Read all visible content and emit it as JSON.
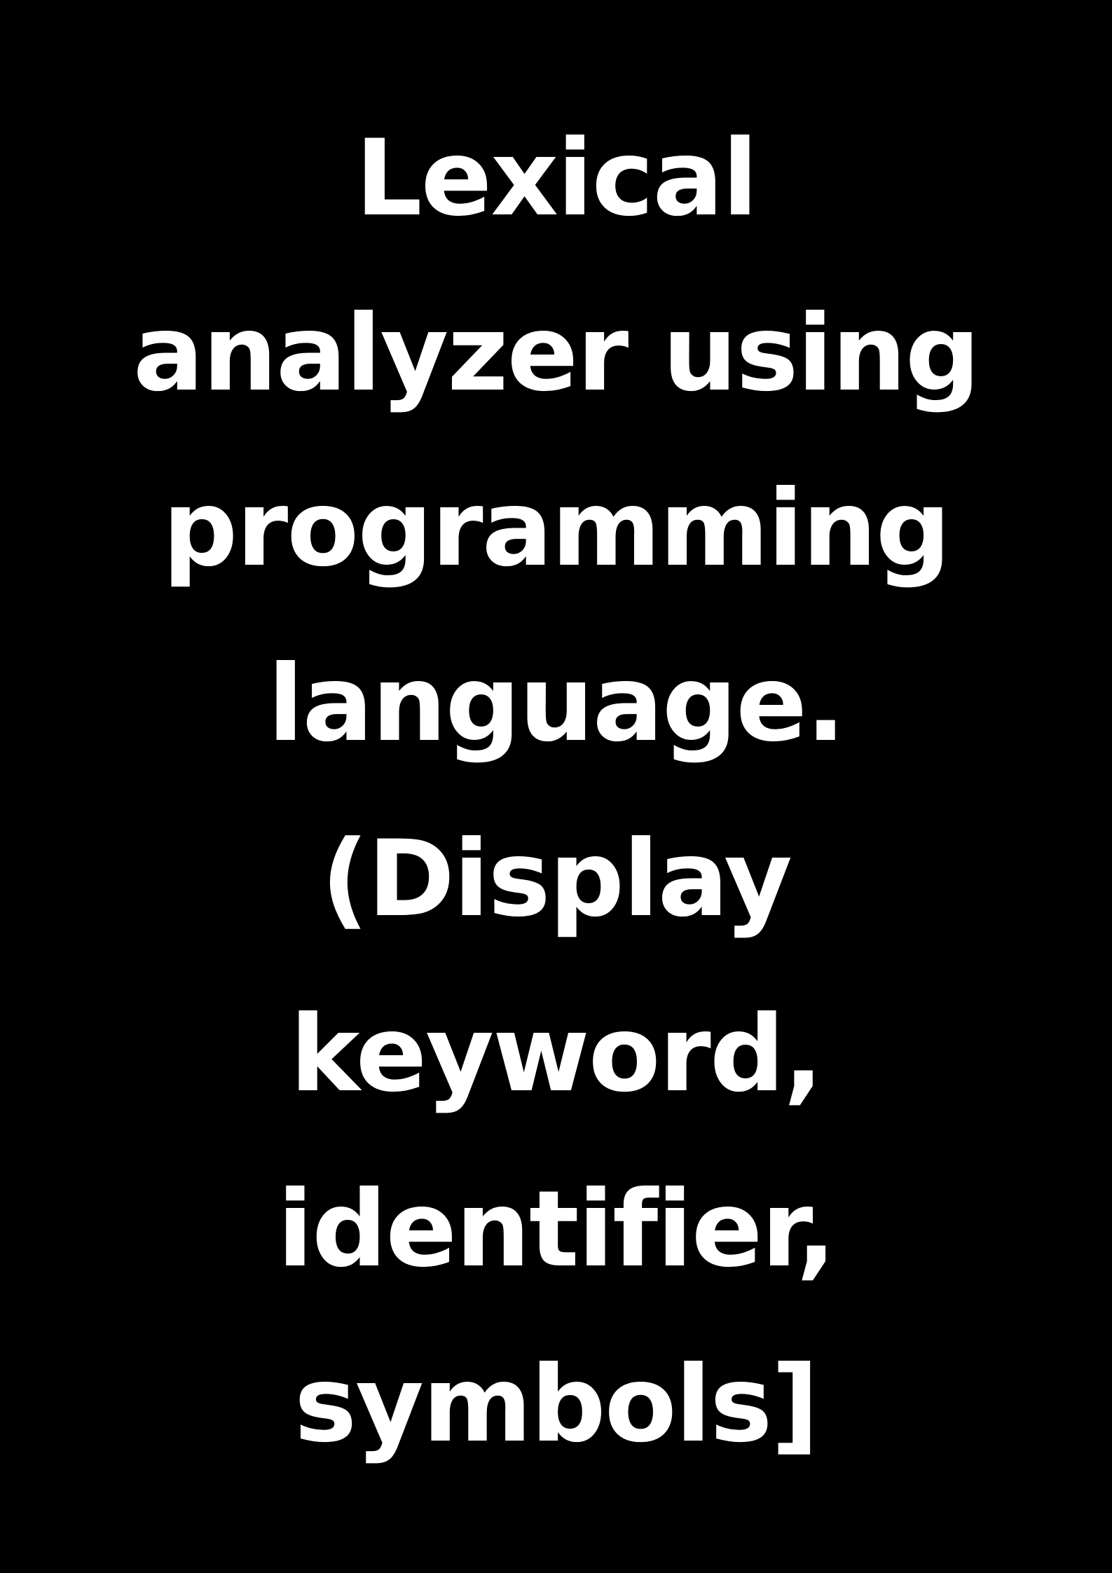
{
  "title_lines": [
    "Lexical",
    "analyzer using",
    "programming",
    "language.",
    "(Display",
    "keyword,",
    "identifier,",
    "symbols]"
  ],
  "colors": {
    "background": "#000000",
    "text": "#ffffff"
  }
}
